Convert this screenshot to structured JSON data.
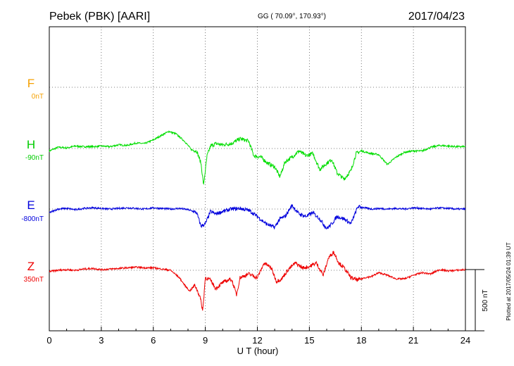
{
  "header": {
    "station": "Pebek (PBK)  [AARI]",
    "coords": "GG ( 70.09°, 170.93°)",
    "date": "2017/04/23"
  },
  "footer": {
    "plotted": "Plotted at 2017/05/24 01:39 UT"
  },
  "scale_bar": {
    "label": "500 nT",
    "value_nT": 500
  },
  "chart_data": {
    "type": "line",
    "xlabel": "U T (hour)",
    "xlim": [
      0,
      24
    ],
    "xticks": [
      "0",
      "3",
      "6",
      "9",
      "12",
      "15",
      "18",
      "21",
      "24"
    ],
    "grid": true,
    "series": [
      {
        "name": "F",
        "offset_label": "0nT",
        "color": "#f5a000",
        "values": []
      },
      {
        "name": "H",
        "offset_label": "-90nT",
        "color": "#00dd00",
        "x": [
          0,
          0.5,
          1.0,
          1.5,
          2.0,
          2.5,
          3.0,
          3.5,
          4.0,
          4.5,
          5.0,
          5.5,
          6.0,
          6.5,
          6.9,
          7.3,
          7.8,
          8.2,
          8.5,
          8.75,
          8.9,
          9.1,
          9.3,
          9.6,
          10.0,
          10.5,
          11.0,
          11.5,
          11.8,
          12.2,
          12.6,
          13.0,
          13.3,
          13.6,
          14.0,
          14.4,
          14.8,
          15.2,
          15.6,
          16.0,
          16.3,
          16.6,
          17.0,
          17.4,
          17.7,
          18.0,
          18.5,
          19.0,
          19.5,
          20.0,
          20.5,
          21.0,
          21.5,
          22.0,
          22.5,
          23.0,
          23.5,
          24.0
        ],
        "values": [
          -20,
          10,
          5,
          20,
          15,
          15,
          20,
          15,
          30,
          25,
          45,
          40,
          70,
          110,
          140,
          120,
          60,
          -10,
          -20,
          -120,
          -300,
          -60,
          20,
          40,
          30,
          40,
          80,
          60,
          -60,
          -70,
          -120,
          -150,
          -230,
          -110,
          -70,
          -20,
          -60,
          -40,
          -170,
          -120,
          -90,
          -200,
          -250,
          -180,
          -40,
          -20,
          -40,
          -50,
          -130,
          -70,
          -30,
          -20,
          -20,
          10,
          25,
          20,
          15,
          15
        ]
      },
      {
        "name": "E",
        "offset_label": "-800nT",
        "color": "#0000dd",
        "x": [
          0,
          0.5,
          1.0,
          1.5,
          2.0,
          2.5,
          3.0,
          3.5,
          4.0,
          4.5,
          5.0,
          5.5,
          6.0,
          6.5,
          7.0,
          7.5,
          8.0,
          8.5,
          8.75,
          9.0,
          9.3,
          9.6,
          10.0,
          10.5,
          11.0,
          11.5,
          12.0,
          12.5,
          13.0,
          13.3,
          13.6,
          14.0,
          14.4,
          14.8,
          15.2,
          15.6,
          16.0,
          16.3,
          16.6,
          17.0,
          17.4,
          17.8,
          18.2,
          18.6,
          19.0,
          19.5,
          20.0,
          20.5,
          21.0,
          21.5,
          22.0,
          22.5,
          23.0,
          23.5,
          24.0
        ],
        "values": [
          -30,
          0,
          5,
          -5,
          5,
          10,
          5,
          0,
          5,
          10,
          5,
          0,
          10,
          5,
          0,
          5,
          -5,
          -30,
          -140,
          -120,
          -20,
          -40,
          -20,
          0,
          5,
          -10,
          -60,
          -120,
          -150,
          -80,
          -60,
          30,
          -40,
          -60,
          -30,
          -80,
          -160,
          -120,
          -60,
          -80,
          -120,
          20,
          10,
          0,
          5,
          0,
          5,
          0,
          10,
          5,
          0,
          10,
          5,
          0,
          0
        ]
      },
      {
        "name": "Z",
        "offset_label": "350nT",
        "color": "#ee0000",
        "x": [
          0,
          0.5,
          1.0,
          1.5,
          2.0,
          2.5,
          3.0,
          3.5,
          4.0,
          4.5,
          5.0,
          5.5,
          6.0,
          6.5,
          7.0,
          7.5,
          7.8,
          8.1,
          8.4,
          8.7,
          8.85,
          9.0,
          9.3,
          9.6,
          10.0,
          10.5,
          10.8,
          11.0,
          11.5,
          12.0,
          12.4,
          12.8,
          13.1,
          13.4,
          13.8,
          14.2,
          14.6,
          15.0,
          15.4,
          15.8,
          16.1,
          16.4,
          16.7,
          17.0,
          17.4,
          17.8,
          18.2,
          18.6,
          19.0,
          19.5,
          20.0,
          20.5,
          21.0,
          21.5,
          22.0,
          22.5,
          23.0,
          23.5,
          24.0
        ],
        "values": [
          -10,
          0,
          5,
          0,
          10,
          15,
          5,
          10,
          15,
          20,
          25,
          20,
          20,
          10,
          0,
          -60,
          -120,
          -170,
          -120,
          -220,
          -330,
          -60,
          -80,
          -150,
          -100,
          -70,
          -200,
          -60,
          -30,
          -60,
          60,
          20,
          -90,
          -70,
          10,
          60,
          20,
          30,
          60,
          -40,
          100,
          150,
          60,
          20,
          -60,
          -80,
          -60,
          -50,
          -20,
          -40,
          -70,
          -70,
          -40,
          -20,
          -30,
          5,
          -5,
          0,
          5
        ]
      }
    ]
  }
}
